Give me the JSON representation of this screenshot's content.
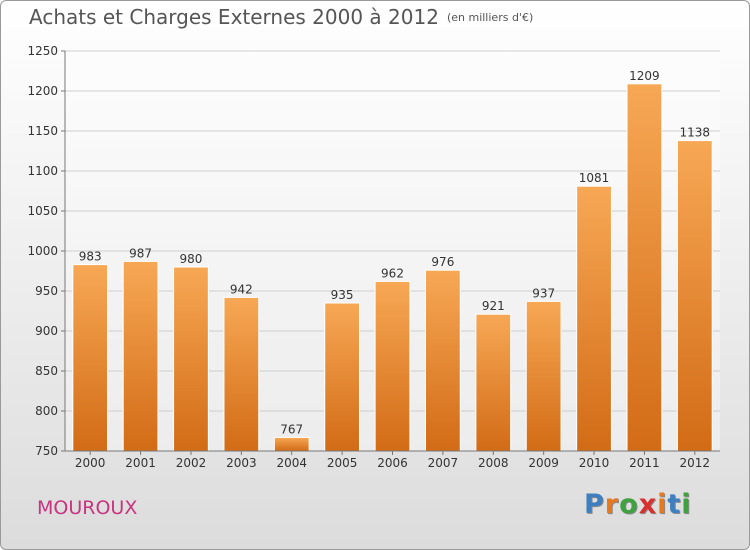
{
  "header": {
    "title": "Achats et Charges Externes 2000 à 2012",
    "unit": "(en milliers d'€)"
  },
  "footer": {
    "commune": "MOUROUX",
    "logo_letters": [
      "P",
      "r",
      "o",
      "x",
      "i",
      "t",
      "i"
    ],
    "logo_colors": [
      "#3f7fc0",
      "#e7791c",
      "#3fa240",
      "#d8302f",
      "#e7791c",
      "#3f7fc0",
      "#3fa240"
    ]
  },
  "chart_data": {
    "type": "bar",
    "title": "Achats et Charges Externes 2000 à 2012",
    "unit": "(en milliers d'€)",
    "categories": [
      "2000",
      "2001",
      "2002",
      "2003",
      "2004",
      "2005",
      "2006",
      "2007",
      "2008",
      "2009",
      "2010",
      "2011",
      "2012"
    ],
    "values": [
      983,
      987,
      980,
      942,
      767,
      935,
      962,
      976,
      921,
      937,
      1081,
      1209,
      1138
    ],
    "ylim": [
      750,
      1250
    ],
    "yticks": [
      750,
      800,
      850,
      900,
      950,
      1000,
      1050,
      1100,
      1150,
      1200,
      1250
    ],
    "grid": true,
    "bar_color_top": "#f7a855",
    "bar_color_bottom": "#d26b16"
  }
}
